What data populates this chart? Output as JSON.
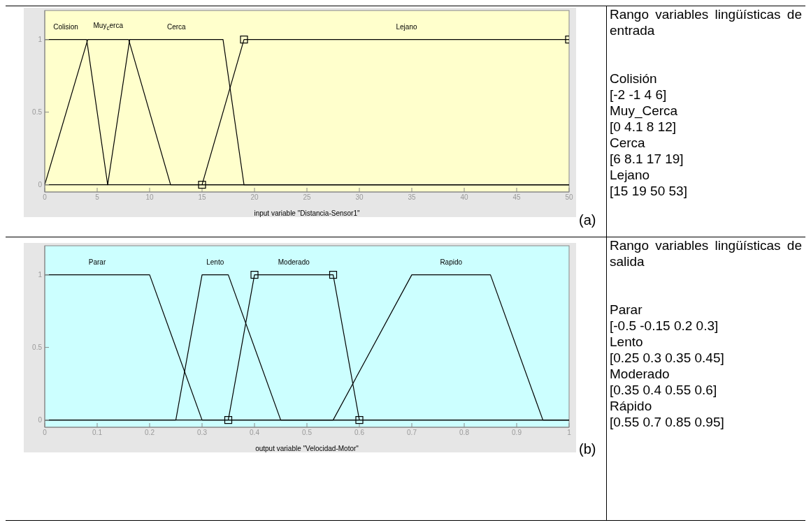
{
  "chart_data": [
    {
      "type": "line",
      "xlabel": "input variable \"Distancia-Sensor1\"",
      "xlim": [
        0,
        50
      ],
      "xticks": [
        0,
        5,
        10,
        15,
        20,
        25,
        30,
        35,
        40,
        45,
        50
      ],
      "ylim": [
        -0.05,
        1.2
      ],
      "yticks": [
        0,
        0.5,
        1
      ],
      "grid": false,
      "line_style": "solid",
      "series": [
        {
          "name": "Colision",
          "color": "#000000",
          "marker": "none",
          "x": [
            0,
            4,
            6,
            50
          ],
          "values": [
            1,
            1,
            0,
            0
          ]
        },
        {
          "name": "Muy$_{c}$erca",
          "color": "#000000",
          "marker": "none",
          "x": [
            0,
            4.1,
            8,
            12,
            50
          ],
          "values": [
            0,
            1,
            1,
            0,
            0
          ]
        },
        {
          "name": "Cerca",
          "color": "#000000",
          "marker": "none",
          "x": [
            0,
            6,
            8.1,
            17,
            19,
            50
          ],
          "values": [
            0,
            0,
            1,
            1,
            0,
            0
          ]
        },
        {
          "name": "Lejano",
          "color": "#000000",
          "marker": "square",
          "x": [
            15,
            19,
            50
          ],
          "values": [
            0,
            1,
            1
          ]
        }
      ],
      "annotations": [
        "(a)",
        "Rango variables lingüísticas de entrada",
        "Colisión",
        "[-2 -1 4 6]",
        "Muy_Cerca",
        "[0 4.1 8 12]",
        "Cerca",
        "[6 8.1 17 19]",
        "Lejano",
        "[15 19 50 53]"
      ]
    },
    {
      "type": "line",
      "xlabel": "output variable \"Velocidad-Motor\"",
      "xlim": [
        0,
        1
      ],
      "xticks": [
        0,
        0.1,
        0.2,
        0.3,
        0.4,
        0.5,
        0.6,
        0.7,
        0.8,
        0.9,
        1
      ],
      "ylim": [
        -0.05,
        1.2
      ],
      "yticks": [
        0,
        0.5,
        1
      ],
      "grid": false,
      "line_style": "solid",
      "series": [
        {
          "name": "Parar",
          "color": "#000000",
          "marker": "none",
          "x": [
            0,
            0.2,
            0.3,
            1
          ],
          "values": [
            1,
            1,
            0,
            0
          ]
        },
        {
          "name": "Lento",
          "color": "#000000",
          "marker": "none",
          "x": [
            0,
            0.25,
            0.3,
            0.35,
            0.45,
            1
          ],
          "values": [
            0,
            0,
            1,
            1,
            0,
            0
          ]
        },
        {
          "name": "Moderado",
          "color": "#000000",
          "marker": "square",
          "x": [
            0.35,
            0.4,
            0.55,
            0.6
          ],
          "values": [
            0,
            1,
            1,
            0
          ]
        },
        {
          "name": "Rapido",
          "color": "#000000",
          "marker": "none",
          "x": [
            0,
            0.55,
            0.7,
            0.85,
            0.95,
            1
          ],
          "values": [
            0,
            0,
            1,
            1,
            0,
            0
          ]
        }
      ],
      "annotations": [
        "(b)",
        "Rango variables lingüísticas de salida",
        "Parar",
        "[-0.5 -0.15 0.2 0.3]",
        "Lento",
        "[0.25 0.3 0.35 0.45]",
        "Moderado",
        "[0.35 0.4 0.55 0.6]",
        "Rápido",
        "[0.55 0.7 0.85 0.95]"
      ]
    }
  ]
}
